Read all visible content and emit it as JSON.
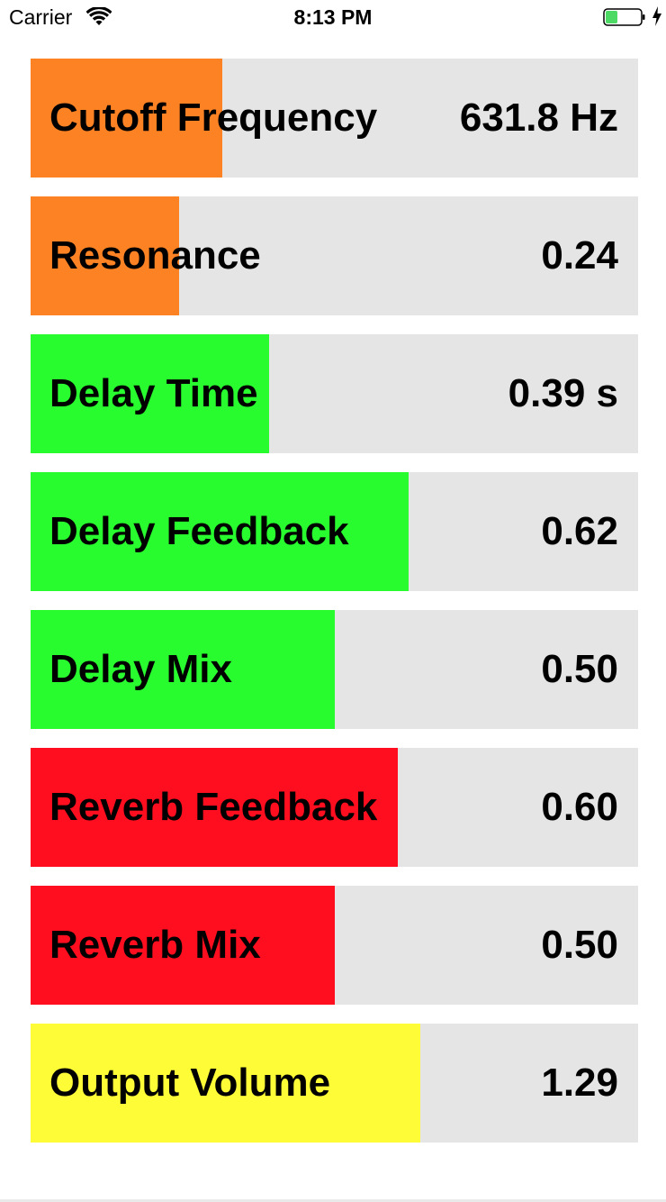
{
  "status_bar": {
    "carrier": "Carrier",
    "time": "8:13 PM",
    "battery_level": 0.35,
    "battery_color": "#4cd964",
    "charging": true
  },
  "colors": {
    "filter": "#fd8224",
    "delay": "#28fc2f",
    "reverb": "#fe0e1f",
    "output": "#fefb37",
    "track": "#e5e5e5"
  },
  "sliders": [
    {
      "id": "cutoff-frequency",
      "label": "Cutoff Frequency",
      "value": "631.8 Hz",
      "fill_fraction": 0.315,
      "color": "#fd8224"
    },
    {
      "id": "resonance",
      "label": "Resonance",
      "value": "0.24",
      "fill_fraction": 0.245,
      "color": "#fd8224"
    },
    {
      "id": "delay-time",
      "label": "Delay Time",
      "value": "0.39 s",
      "fill_fraction": 0.393,
      "color": "#28fc2f"
    },
    {
      "id": "delay-feedback",
      "label": "Delay Feedback",
      "value": "0.62",
      "fill_fraction": 0.622,
      "color": "#28fc2f"
    },
    {
      "id": "delay-mix",
      "label": "Delay Mix",
      "value": "0.50",
      "fill_fraction": 0.5,
      "color": "#28fc2f"
    },
    {
      "id": "reverb-feedback",
      "label": "Reverb Feedback",
      "value": "0.60",
      "fill_fraction": 0.604,
      "color": "#fe0e1f"
    },
    {
      "id": "reverb-mix",
      "label": "Reverb Mix",
      "value": "0.50",
      "fill_fraction": 0.5,
      "color": "#fe0e1f"
    },
    {
      "id": "output-volume",
      "label": "Output Volume",
      "value": "1.29",
      "fill_fraction": 0.641,
      "color": "#fefb37"
    }
  ]
}
